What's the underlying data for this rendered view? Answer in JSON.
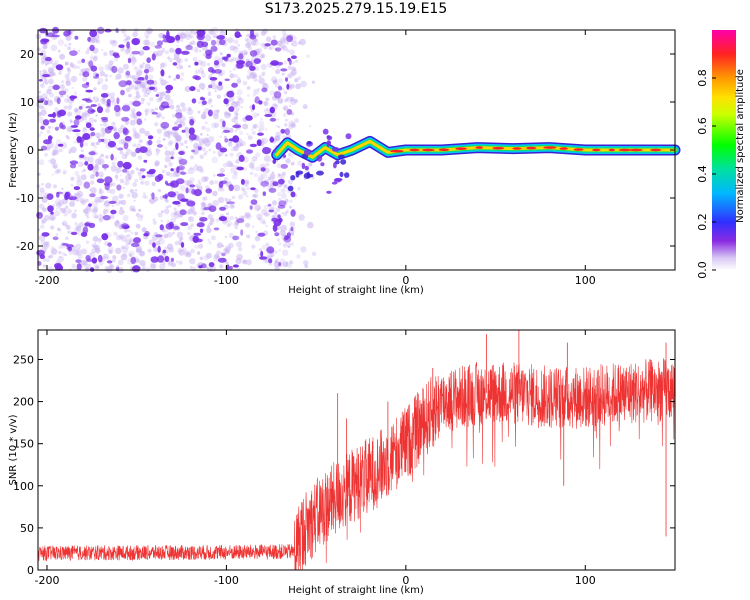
{
  "title": "S173.2025.279.15.19.E15",
  "colors": {
    "snr_line": "#ee3333",
    "scatter_noise": "#7a32e8",
    "frame": "#000000"
  },
  "chart_data": [
    {
      "type": "heatmap",
      "name": "spectrogram",
      "xlabel": "Height of straight line (km)",
      "ylabel": "Frequency (Hz)",
      "xlim": [
        -205,
        150
      ],
      "ylim": [
        -25,
        25
      ],
      "xticks": [
        -200,
        -100,
        0,
        100
      ],
      "yticks": [
        -20,
        -10,
        0,
        10,
        20
      ],
      "x_tick_labels": [
        "-200",
        "-100",
        "0",
        "100"
      ],
      "y_tick_labels": [
        "-20",
        "-10",
        "0",
        "10",
        "20"
      ],
      "noise_region_x": [
        -205,
        -62
      ],
      "signal_band_hz": 0,
      "signal_trace_points": [
        {
          "x": -72,
          "y": -1
        },
        {
          "x": -66,
          "y": 1.5
        },
        {
          "x": -60,
          "y": 0
        },
        {
          "x": -52,
          "y": -1.5
        },
        {
          "x": -45,
          "y": 0.5
        },
        {
          "x": -38,
          "y": -1
        },
        {
          "x": -30,
          "y": 0
        },
        {
          "x": -20,
          "y": 1.8
        },
        {
          "x": -10,
          "y": -0.5
        },
        {
          "x": 0,
          "y": 0
        },
        {
          "x": 20,
          "y": 0
        },
        {
          "x": 40,
          "y": 0.5
        },
        {
          "x": 60,
          "y": 0.3
        },
        {
          "x": 80,
          "y": 0.5
        },
        {
          "x": 100,
          "y": 0
        },
        {
          "x": 150,
          "y": 0
        }
      ],
      "colorbar": {
        "label": "Normalized spectral amplitude",
        "range": [
          0,
          1
        ],
        "ticks": [
          0.0,
          0.2,
          0.4,
          0.6,
          0.8
        ],
        "tick_labels": [
          "0.0",
          "0.2",
          "0.4",
          "0.6",
          "0.8"
        ]
      }
    },
    {
      "type": "line",
      "name": "snr",
      "xlabel": "Height of straight line (km)",
      "ylabel": "SNR (10 * v/v)",
      "xlim": [
        -205,
        150
      ],
      "ylim": [
        0,
        285
      ],
      "xticks": [
        -200,
        -100,
        0,
        100
      ],
      "yticks": [
        0,
        50,
        100,
        150,
        200,
        250
      ],
      "x_tick_labels": [
        "-200",
        "-100",
        "0",
        "100"
      ],
      "y_tick_labels": [
        "0",
        "50",
        "100",
        "150",
        "200",
        "250"
      ],
      "envelope": [
        {
          "x": -205,
          "mean": 20
        },
        {
          "x": -100,
          "mean": 21
        },
        {
          "x": -62,
          "mean": 22
        },
        {
          "x": -58,
          "mean": 45
        },
        {
          "x": -45,
          "mean": 75
        },
        {
          "x": -30,
          "mean": 100
        },
        {
          "x": -15,
          "mean": 120
        },
        {
          "x": 0,
          "mean": 150
        },
        {
          "x": 10,
          "mean": 175
        },
        {
          "x": 20,
          "mean": 200
        },
        {
          "x": 40,
          "mean": 210
        },
        {
          "x": 60,
          "mean": 210
        },
        {
          "x": 80,
          "mean": 205
        },
        {
          "x": 100,
          "mean": 205
        },
        {
          "x": 120,
          "mean": 210
        },
        {
          "x": 150,
          "mean": 215
        }
      ],
      "spikes": [
        {
          "x": -38,
          "y": 210
        },
        {
          "x": -33,
          "y": 180
        },
        {
          "x": -10,
          "y": 200
        },
        {
          "x": 15,
          "y": 240
        },
        {
          "x": 45,
          "y": 280
        },
        {
          "x": 63,
          "y": 285
        },
        {
          "x": 90,
          "y": 270
        },
        {
          "x": 145,
          "y": 270
        },
        {
          "x": 88,
          "y": 100
        },
        {
          "x": 145,
          "y": 40
        }
      ]
    }
  ]
}
